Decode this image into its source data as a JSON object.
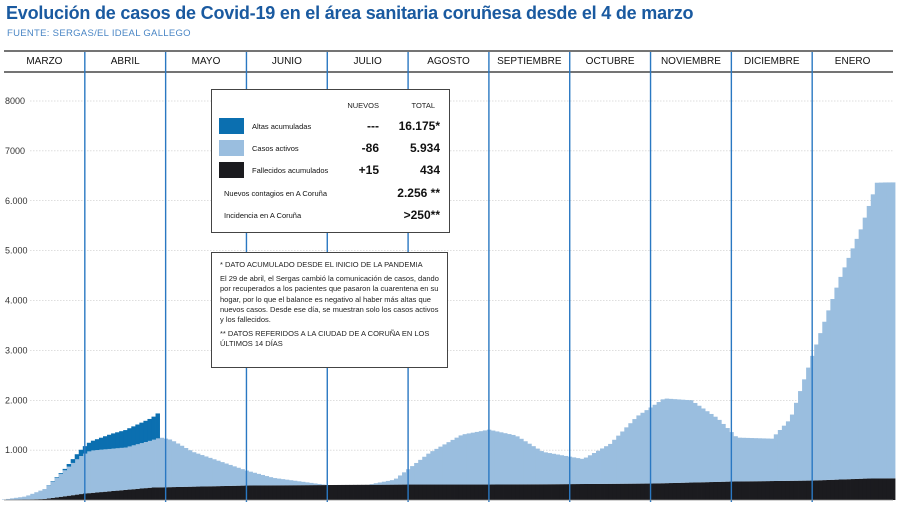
{
  "header": {
    "title": "Evolución de casos de Covid-19 en el área sanitaria coruñesa desde el 4 de marzo",
    "source": "FUENTE: SERGAS/EL IDEAL GALLEGO"
  },
  "legend": {
    "col_new": "NUEVOS",
    "col_total": "TOTAL",
    "rows": [
      {
        "label": "Altas acumuladas",
        "new": "---",
        "total": "16.175*",
        "color": "#0b6fb0"
      },
      {
        "label": "Casos activos",
        "new": "-86",
        "total": "5.934",
        "color": "#9abedf"
      },
      {
        "label": "Fallecidos acumulados",
        "new": "+15",
        "total": "434",
        "color": "#1b1b1f"
      }
    ],
    "extra": [
      {
        "label": "Nuevos contagios en A Coruña",
        "value": "2.256 **"
      },
      {
        "label": "Incidencia en A Coruña",
        "value": ">250**"
      }
    ]
  },
  "notes": {
    "heading": "* DATO ACUMULADO DESDE EL INICIO DE LA PANDEMIA",
    "body": "El 29 de abril, el Sergas cambió la comunicación de casos, dando por recuperados a los pacientes que pasaron la cuarentena en su hogar, por lo que el balance es negativo al haber más altas que nuevos casos. Desde ese día, se muestran solo los casos activos y los fallecidos.",
    "footer": "** DATOS REFERIDOS A LA CIUDAD DE A CORUÑA EN LOS ÚLTIMOS 14 DÍAS"
  },
  "chart_data": {
    "type": "area",
    "months": [
      "MARZO",
      "ABRIL",
      "MAYO",
      "JUNIO",
      "JULIO",
      "AGOSTO",
      "SEPTIEMBRE",
      "OCTUBRE",
      "NOVIEMBRE",
      "DICIEMBRE",
      "ENERO"
    ],
    "y_ticks": [
      "8000",
      "7000",
      "6.000",
      "5.000",
      "4.000",
      "3.000",
      "2.000",
      "1.000"
    ],
    "ylim": [
      0,
      8000
    ],
    "x_domain": [
      0,
      330
    ],
    "stacked": true,
    "series": [
      {
        "name": "Fallecidos acumulados",
        "color": "#1b1b1f",
        "points": [
          [
            0,
            0
          ],
          [
            15,
            20
          ],
          [
            30,
            130
          ],
          [
            55,
            250
          ],
          [
            90,
            290
          ],
          [
            150,
            310
          ],
          [
            180,
            310
          ],
          [
            200,
            315
          ],
          [
            240,
            330
          ],
          [
            270,
            370
          ],
          [
            300,
            390
          ],
          [
            320,
            430
          ],
          [
            330,
            434
          ]
        ]
      },
      {
        "name": "Casos activos",
        "color": "#9abedf",
        "points": [
          [
            0,
            10
          ],
          [
            8,
            60
          ],
          [
            15,
            200
          ],
          [
            22,
            500
          ],
          [
            28,
            750
          ],
          [
            32,
            850
          ],
          [
            45,
            850
          ],
          [
            55,
            950
          ],
          [
            58,
            1000
          ],
          [
            62,
            950
          ],
          [
            70,
            700
          ],
          [
            80,
            500
          ],
          [
            90,
            300
          ],
          [
            100,
            150
          ],
          [
            120,
            0
          ],
          [
            135,
            0
          ],
          [
            145,
            100
          ],
          [
            158,
            640
          ],
          [
            170,
            1000
          ],
          [
            180,
            1100
          ],
          [
            190,
            980
          ],
          [
            200,
            650
          ],
          [
            215,
            500
          ],
          [
            225,
            800
          ],
          [
            235,
            1350
          ],
          [
            245,
            1700
          ],
          [
            255,
            1650
          ],
          [
            265,
            1270
          ],
          [
            272,
            880
          ],
          [
            285,
            850
          ],
          [
            292,
            1250
          ],
          [
            300,
            2500
          ],
          [
            310,
            4000
          ],
          [
            318,
            5000
          ],
          [
            324,
            5930
          ],
          [
            327,
            5934
          ],
          [
            330,
            5934
          ]
        ]
      },
      {
        "name": "Altas acumuladas",
        "color": "#0b6fb0",
        "points": [
          [
            0,
            0
          ],
          [
            15,
            0
          ],
          [
            22,
            20
          ],
          [
            30,
            150
          ],
          [
            40,
            300
          ],
          [
            50,
            400
          ],
          [
            55,
            450
          ],
          [
            57,
            500
          ],
          [
            57.5,
            0
          ],
          [
            330,
            0
          ]
        ]
      }
    ]
  }
}
